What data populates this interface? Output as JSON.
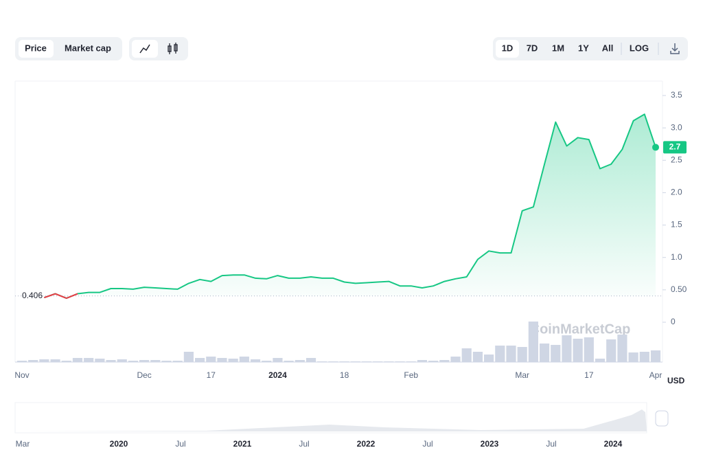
{
  "controls": {
    "metric": [
      "Price",
      "Market cap"
    ],
    "ranges": [
      "1D",
      "7D",
      "1M",
      "1Y",
      "All"
    ],
    "log": "LOG"
  },
  "chart_data": {
    "type": "line",
    "categories": [
      "Nov",
      null,
      null,
      null,
      null,
      null,
      null,
      null,
      null,
      null,
      null,
      "Dec",
      null,
      null,
      null,
      null,
      null,
      "17",
      null,
      null,
      null,
      null,
      null,
      "2024",
      null,
      null,
      null,
      null,
      null,
      "18",
      null,
      null,
      null,
      null,
      null,
      "Feb",
      null,
      null,
      null,
      null,
      null,
      null,
      null,
      null,
      null,
      "Mar",
      null,
      null,
      null,
      null,
      null,
      "17",
      null,
      null,
      null,
      null,
      null,
      "Apr"
    ],
    "series": [
      {
        "color": "#16c784",
        "down_color": "#ea3943",
        "values": [
          null,
          null,
          0.38,
          0.44,
          0.37,
          0.44,
          0.46,
          0.46,
          0.52,
          0.52,
          0.51,
          0.54,
          0.53,
          0.52,
          0.51,
          0.6,
          0.66,
          0.63,
          0.72,
          0.73,
          0.73,
          0.68,
          0.67,
          0.72,
          0.68,
          0.68,
          0.7,
          0.68,
          0.68,
          0.62,
          0.6,
          0.61,
          0.62,
          0.63,
          0.56,
          0.56,
          0.53,
          0.56,
          0.63,
          0.67,
          0.7,
          0.97,
          1.1,
          1.07,
          1.07,
          1.72,
          1.78,
          2.44,
          3.09,
          2.72,
          2.85,
          2.82,
          2.37,
          2.44,
          2.67,
          3.11,
          3.21,
          2.7
        ]
      }
    ],
    "baseline": 0.406,
    "volume": [
      2,
      3,
      4,
      4,
      2,
      6,
      6,
      5,
      3,
      4,
      2,
      3,
      3,
      2,
      2,
      15,
      6,
      8,
      6,
      5,
      8,
      4,
      2,
      6,
      2,
      3,
      6,
      1,
      1,
      1,
      1,
      1,
      1,
      1,
      1,
      1,
      3,
      2,
      3,
      8,
      20,
      15,
      11,
      24,
      24,
      22,
      59,
      27,
      25,
      39,
      34,
      36,
      5,
      33,
      40,
      14,
      15,
      17
    ],
    "volume_color": "#cfd6e4",
    "ylim": [
      0,
      3.5
    ],
    "yticks": [
      0,
      {
        "value": 0.5,
        "label": "0.50"
      },
      {
        "value": 1,
        "label": "1.0"
      },
      1.5,
      {
        "value": 2,
        "label": "2.0"
      },
      2.5,
      {
        "value": 3,
        "label": "3.0"
      },
      3.5
    ],
    "y_unit": "USD",
    "watermark": "CoinMarketCap",
    "grid": false
  },
  "navigator": {
    "labels": [
      "Mar",
      "2020",
      "Jul",
      "2021",
      "Jul",
      "2022",
      "Jul",
      "2023",
      "Jul",
      "2024"
    ]
  }
}
